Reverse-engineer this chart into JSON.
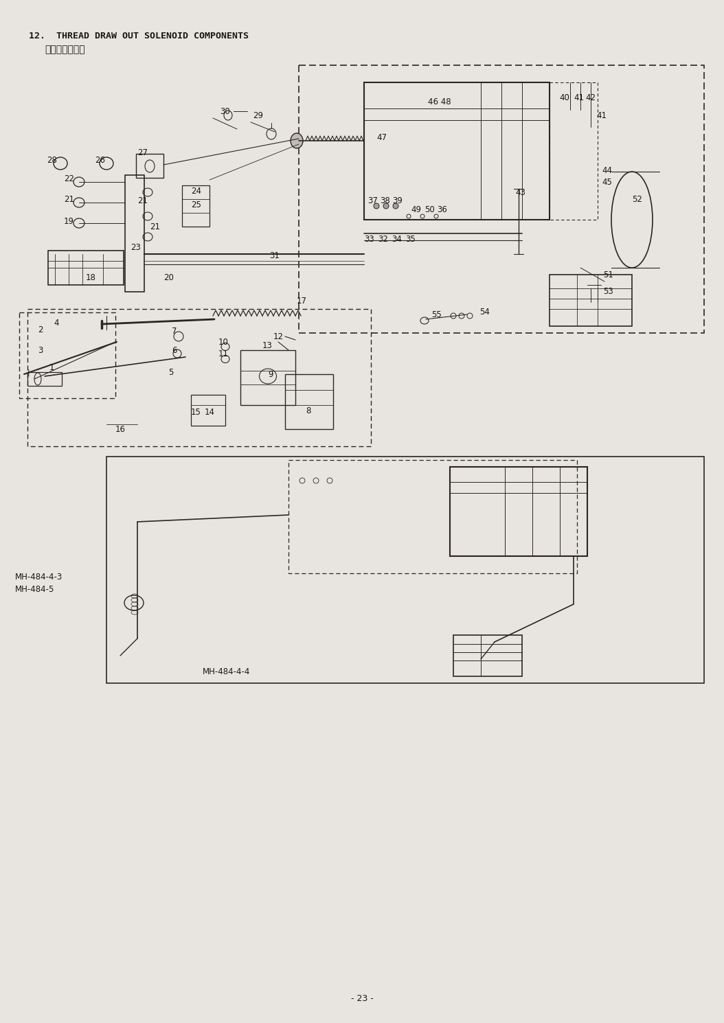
{
  "title_line1": "12.  THREAD DRAW OUT SOLENOID COMPONENTS",
  "title_line2": "繋出し装置関係",
  "page_number": "- 23 -",
  "bg_color": "#e8e5e0",
  "line_color": "#2a2520",
  "text_color": "#1a1510",
  "fig_w": 10.54,
  "fig_h": 14.9,
  "dpi": 100
}
